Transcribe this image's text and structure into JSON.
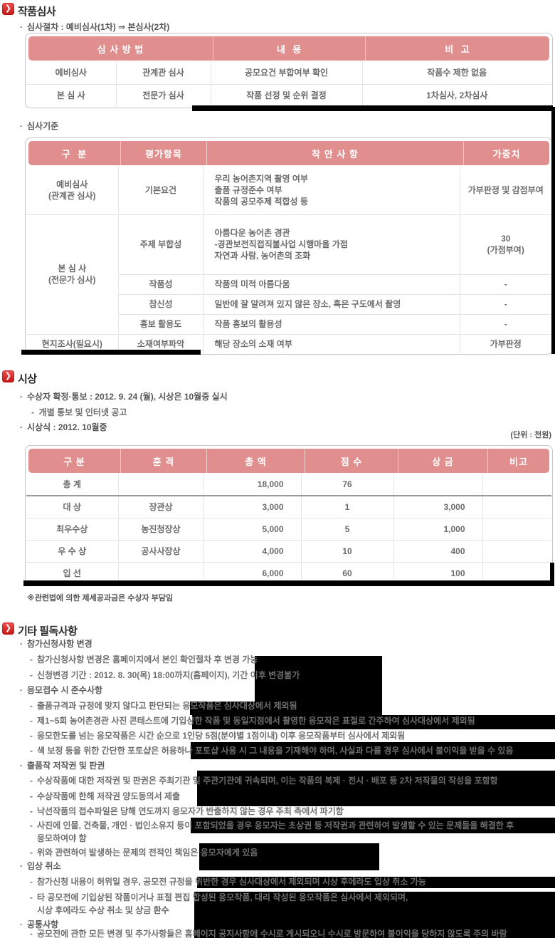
{
  "sections": {
    "s1": {
      "title": "작품심사",
      "bullet_procedure": "심사절차 : 예비심사(1차) ⇒ 본심사(2차)",
      "bullet_criteria": "심사기준",
      "t1": {
        "headers": [
          "심 사 방 법",
          "내  용",
          "비  고"
        ],
        "rows": [
          {
            "c0": "예비심사",
            "c1": "관계관 심사",
            "c2": "공모요건 부합여부 확인",
            "c3": "작품수 제한 없음"
          },
          {
            "c0": "본 심 사",
            "c1": "전문가 심사",
            "c2": "작품 선정 및 순위 결정",
            "c3": "1차심사, 2차심사"
          }
        ]
      },
      "t2": {
        "headers": [
          "구  분",
          "평가항목",
          "착 안 사 항",
          "가중치"
        ],
        "r0": {
          "g": "예비심사\n(관계관 심사)",
          "item": "기본요건",
          "detail": "우리 농어촌지역 촬영 여부\n출품 규정준수 여부\n작품의 공모주제 적합성 등",
          "w": "가부판정 및 감점부여"
        },
        "g2": "본 심 사\n(전문가 심사)",
        "r1": {
          "item": "주제 부합성",
          "detail": "아름다운 농어촌 경관\n-경관보전직접직불사업 시행마을 가점\n자연과 사람, 농어촌의 조화",
          "w": "30\n(가점부여)"
        },
        "r2": {
          "item": "작품성",
          "detail": "작품의 미적 아름다움",
          "w": "-"
        },
        "r3": {
          "item": "참신성",
          "detail": "일반에 잘 알려져 있지 않은 장소, 혹은 구도에서 촬영",
          "w": "-"
        },
        "r4": {
          "item": "홍보 활용도",
          "detail": "작품 홍보의 활용성",
          "w": "-"
        },
        "r5": {
          "g": "현지조사(필요시)",
          "item": "소재여부파악",
          "detail": "해당 장소의 소재 여부",
          "w": "가부판정"
        }
      }
    },
    "s2": {
      "title": "시상",
      "bullet_confirm": "수상자 확정·통보 : 2012. 9. 24 (월), 시상은 10월중 실시",
      "sub_confirm": "-  개별 통보 및 인터넷 공고",
      "bullet_ceremony": "시상식 : 2012. 10월중",
      "unit_note": "(단위 : 천원)",
      "t3": {
        "headers": [
          "구 분",
          "훈 격",
          "총 액",
          "점 수",
          "상 금",
          "비고"
        ],
        "rows": [
          {
            "c0": "총     계",
            "c1": "",
            "c2": "18,000",
            "c3": "76",
            "c4": "",
            "c5": ""
          },
          {
            "c0": "대     상",
            "c1": "장관상",
            "c2": "3,000",
            "c3": "1",
            "c4": "3,000",
            "c5": ""
          },
          {
            "c0": "최우수상",
            "c1": "농진청장상",
            "c2": "5,000",
            "c3": "5",
            "c4": "1,000",
            "c5": ""
          },
          {
            "c0": "우 수 상",
            "c1": "공사사장상",
            "c2": "4,000",
            "c3": "10",
            "c4": "400",
            "c5": ""
          },
          {
            "c0": "입     선",
            "c1": "",
            "c2": "6,000",
            "c3": "60",
            "c4": "100",
            "c5": ""
          }
        ]
      },
      "footnote": "※관련법에 의한 제세공과금은 수상자 부담임"
    },
    "s3": {
      "title": "기타 필독사항",
      "items": [
        {
          "b": "·",
          "t": "참가신청사항 변경"
        },
        {
          "b": "-",
          "t": "참가신청사항 변경은 홈페이지에서 본인 확인절차 후 변경 가능"
        },
        {
          "b": "-",
          "t": "신청변경 기간 : 2012. 8. 30(목) 18:00까지(홈페이지), 기간 이후 변경불가"
        },
        {
          "b": "·",
          "t": "응모접수 시 준수사항"
        },
        {
          "b": "-",
          "t": "출품규격과 규정에 맞지 않다고 판단되는 응모작품은 심사대상에서 제외됨"
        },
        {
          "b": "-",
          "t": "제1~5회 농어촌경관 사진 콘테스트에 기입상한 작품 및 동일지점에서 촬영한 응모작은 표절로 간주하여 심사대상에서 제외됨"
        },
        {
          "b": "-",
          "t": "응모한도를 넘는 응모작품은 시간 순으로 1인당 5점(분야별 1점이내) 이후 응모작품부터 심사에서 제외됨"
        },
        {
          "b": "-",
          "t": "색 보정 등을 위한 간단한 포토샵은 허용하나 포토샵 사용 시 그 내용을 기재해야 하며, 사실과 다를 경우 심사에서 불이익을 받을 수 있음"
        },
        {
          "b": "·",
          "t": "출품작 저작권 및 판권"
        },
        {
          "b": "-",
          "t": "수상작품에 대한 저작권 및 판권은 주최기관 및 주관기관에 귀속되며, 이는 작품의 복제 · 전시 · 배포 등 2차 저작물의 작성을 포함함"
        },
        {
          "b": "-",
          "t": "수상작품에 한해 저작권 양도동의서 제출"
        },
        {
          "b": "-",
          "t": "낙선작품의 접수파일은 당해 연도까지 응모자가 반출하지 않는 경우 주최 측에서 파기함"
        },
        {
          "b": "-",
          "t": "사진에 인물, 건축물, 개인 · 법인소유지 등이 포함되었을 경우 응모자는 초상권 등 저작권과 관련하여 발생할 수 있는 문제들을 해결한 후\n응모하여야 함"
        },
        {
          "b": "-",
          "t": "위와 관련하여 발생하는 문제의 전적인 책임은 응모자에게 있음"
        },
        {
          "b": "·",
          "t": "입상 취소"
        },
        {
          "b": "-",
          "t": "참가신청 내용이 허위일 경우, 공모전 규정을 위반한 경우 심사대상에서 제외되며 시상 후에라도 입상 취소 가능"
        },
        {
          "b": "-",
          "t": "타 공모전에 기입상된 작품이거나 표절 편집 합성된 응모작품, 대리 작성된 응모작품은 심사에서 제외되며,\n시상 후에라도 수상 취소 및 상금 환수"
        },
        {
          "b": "·",
          "t": "공통사항"
        },
        {
          "b": "-",
          "t": "공모전에 관한 모든 변경 및 추가사항들은 홈페이지 공지사항에 수시로 게시되오니 수시로 방문하여 불이익을 당하지 않도록 주의 바람"
        }
      ]
    }
  },
  "colors": {
    "header_band": "#e08e8e",
    "icon_red": "#d92b2b",
    "table_border": "#c9c9c9",
    "redaction": "#000000"
  }
}
